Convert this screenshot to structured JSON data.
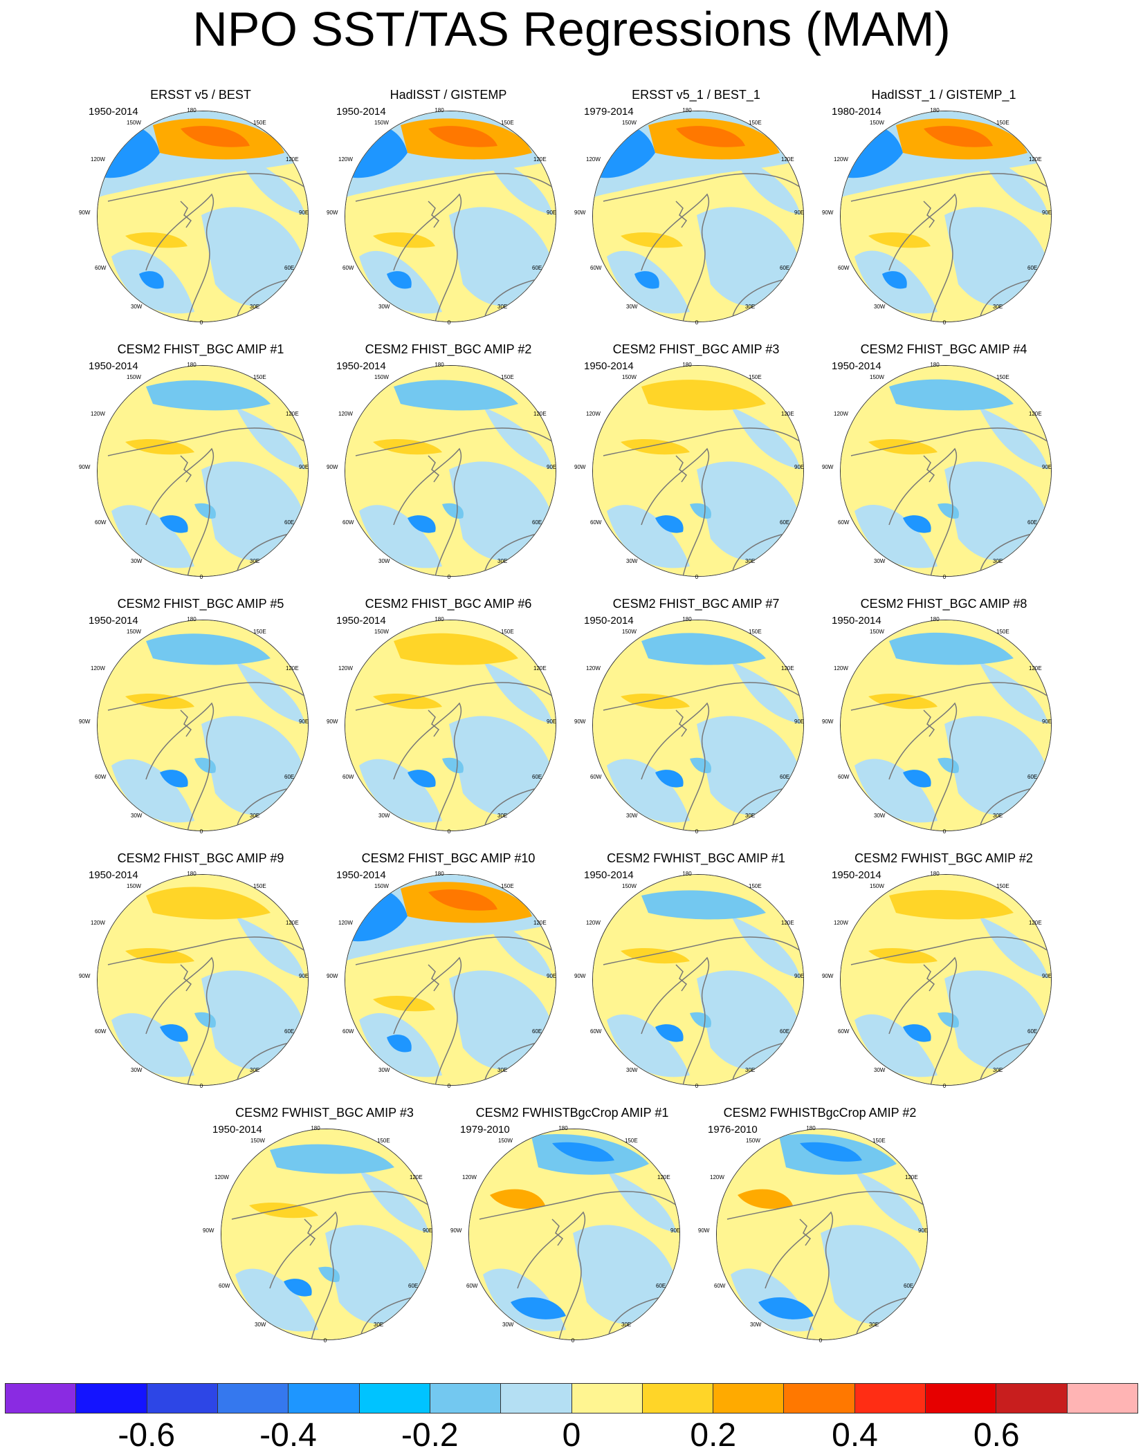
{
  "title": "NPO SST/TAS Regressions (MAM)",
  "longitude_labels": [
    "180",
    "150E",
    "120E",
    "90E",
    "60E",
    "30E",
    "0",
    "30W",
    "60W",
    "90W",
    "120W",
    "150W"
  ],
  "panels": [
    {
      "title": "ERSST v5 / BEST",
      "years": "1950-2014",
      "pacific": "strong"
    },
    {
      "title": "HadISST / GISTEMP",
      "years": "1950-2014",
      "pacific": "strong"
    },
    {
      "title": "ERSST v5_1 / BEST_1",
      "years": "1979-2014",
      "pacific": "strong"
    },
    {
      "title": "HadISST_1 / GISTEMP_1",
      "years": "1980-2014",
      "pacific": "strong"
    },
    {
      "title": "CESM2 FHIST_BGC AMIP #1",
      "years": "1950-2014",
      "pacific": "weak"
    },
    {
      "title": "CESM2 FHIST_BGC AMIP #2",
      "years": "1950-2014",
      "pacific": "weak"
    },
    {
      "title": "CESM2 FHIST_BGC AMIP #3",
      "years": "1950-2014",
      "pacific": "weak"
    },
    {
      "title": "CESM2 FHIST_BGC AMIP #4",
      "years": "1950-2014",
      "pacific": "weak"
    },
    {
      "title": "CESM2 FHIST_BGC AMIP #5",
      "years": "1950-2014",
      "pacific": "weak"
    },
    {
      "title": "CESM2 FHIST_BGC AMIP #6",
      "years": "1950-2014",
      "pacific": "weak"
    },
    {
      "title": "CESM2 FHIST_BGC AMIP #7",
      "years": "1950-2014",
      "pacific": "weak"
    },
    {
      "title": "CESM2 FHIST_BGC AMIP #8",
      "years": "1950-2014",
      "pacific": "weak"
    },
    {
      "title": "CESM2 FHIST_BGC AMIP #9",
      "years": "1950-2014",
      "pacific": "weak"
    },
    {
      "title": "CESM2 FHIST_BGC AMIP #10",
      "years": "1950-2014",
      "pacific": "strong"
    },
    {
      "title": "CESM2 FWHIST_BGC AMIP #1",
      "years": "1950-2014",
      "pacific": "weak"
    },
    {
      "title": "CESM2 FWHIST_BGC AMIP #2",
      "years": "1950-2014",
      "pacific": "weak"
    },
    {
      "title": "CESM2 FWHIST_BGC AMIP #3",
      "years": "1950-2014",
      "pacific": "weak"
    },
    {
      "title": "CESM2 FWHISTBgcCrop AMIP #1",
      "years": "1979-2010",
      "pacific": "reversed"
    },
    {
      "title": "CESM2 FWHISTBgcCrop AMIP #2",
      "years": "1976-2010",
      "pacific": "reversed"
    }
  ],
  "colorbar": {
    "colors": [
      "#8a2be2",
      "#1414ff",
      "#2d46e6",
      "#3578ee",
      "#1e96ff",
      "#00c3ff",
      "#73c8f0",
      "#b4dff3",
      "#fff591",
      "#ffd528",
      "#ffaa00",
      "#ff7800",
      "#ff2d14",
      "#e60000",
      "#c81e1e",
      "#ffb4b4"
    ],
    "ticks": [
      "-0.6",
      "-0.4",
      "-0.2",
      "0",
      "0.2",
      "0.4",
      "0.6"
    ],
    "tick_values": [
      -0.6,
      -0.4,
      -0.2,
      0,
      0.2,
      0.4,
      0.6
    ],
    "range": [
      -0.8,
      0.8
    ]
  }
}
